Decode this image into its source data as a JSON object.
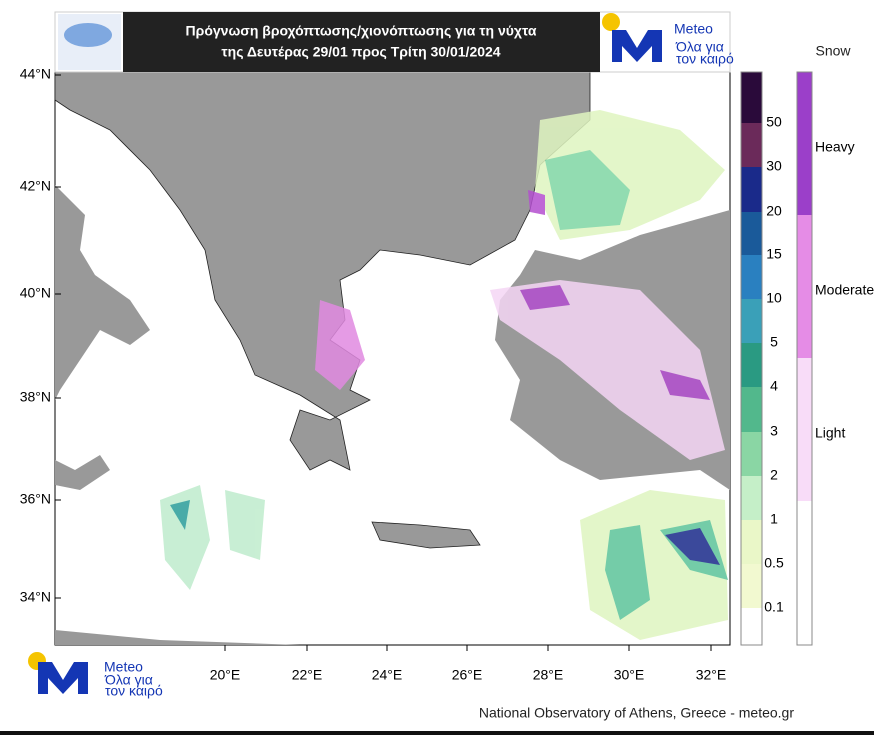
{
  "header": {
    "title_lines": [
      "Πρόγνωση βροχόπτωσης/χιονόπτωσης για τη νύχτα",
      "της Δευτέρας 29/01 προς Τρίτη 30/01/2024"
    ]
  },
  "logos": {
    "name": "Meteo",
    "tagline_lines": [
      "Όλα για",
      "τον καιρό"
    ]
  },
  "map": {
    "lat_labels": [
      "44°N",
      "42°N",
      "40°N",
      "38°N",
      "36°N",
      "34°N"
    ],
    "lon_labels": [
      "20°E",
      "22°E",
      "24°E",
      "26°E",
      "28°E",
      "30°E",
      "32°E"
    ]
  },
  "precip_legend": {
    "labels": [
      "50",
      "30",
      "20",
      "15",
      "10",
      "5",
      "4",
      "3",
      "2",
      "1",
      "0.5",
      "0.1"
    ]
  },
  "snow_legend": {
    "title": "Snow",
    "labels": [
      "Heavy",
      "Moderate",
      "Light"
    ]
  },
  "footer": {
    "credit": "National Observatory of Athens, Greece - meteo.gr"
  }
}
